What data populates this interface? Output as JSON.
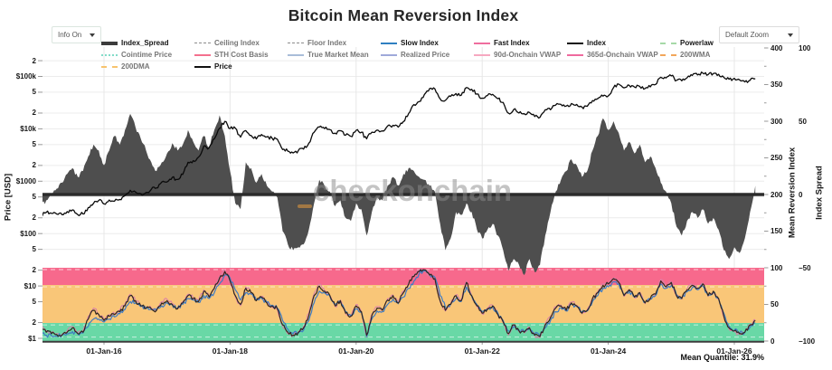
{
  "controls": {
    "info_dropdown": {
      "label": "Info On"
    },
    "zoom_dropdown": {
      "label": "Default Zoom"
    }
  },
  "watermark": {
    "text": "checkonchain"
  },
  "theme": {
    "background": "#ffffff",
    "gridline": "#ececec",
    "spread_fill": "#4e4e4e",
    "zero_line": "#2b2b2b",
    "price_line": "#0a0a0a",
    "watermark_orange": "#F5A33C",
    "band_pink": "#F7698C",
    "band_orange": "#F9C678",
    "band_green": "#69D8A6"
  },
  "legend": {
    "items": [
      {
        "label": "Index_Spread",
        "color": "#3b3b3b",
        "style": "thick",
        "active": true
      },
      {
        "label": "Ceiling Index",
        "color": "#8c8c8c",
        "style": "thin",
        "active": false
      },
      {
        "label": "Floor Index",
        "color": "#8c8c8c",
        "style": "thin",
        "active": false
      },
      {
        "label": "Slow Index",
        "color": "#2f7fc1",
        "style": "solid",
        "active": true
      },
      {
        "label": "Fast Index",
        "color": "#ef6e9e",
        "style": "solid",
        "active": true
      },
      {
        "label": "Index",
        "color": "#111111",
        "style": "solid",
        "active": true
      },
      {
        "label": "Powerlaw",
        "color": "#a6d9a7",
        "style": "dashed",
        "active": true
      },
      {
        "label": "Cointime Price",
        "color": "#82dcc9",
        "style": "dotted",
        "active": false
      },
      {
        "label": "STH Cost Basis",
        "color": "#f4708e",
        "style": "solid",
        "active": false
      },
      {
        "label": "True Market Mean",
        "color": "#a9bdd9",
        "style": "solid",
        "active": false
      },
      {
        "label": "Realized Price",
        "color": "#9fa9da",
        "style": "solid",
        "active": false
      },
      {
        "label": "90d-Onchain VWAP",
        "color": "#f6a8c0",
        "style": "solid",
        "active": false
      },
      {
        "label": "365d-Onchain VWAP",
        "color": "#ef6a9e",
        "style": "solid",
        "active": false
      },
      {
        "label": "200WMA",
        "color": "#f2a65a",
        "style": "dashed",
        "active": false
      },
      {
        "label": "200DMA",
        "color": "#f7c36e",
        "style": "dashed",
        "active": false
      },
      {
        "label": "Price",
        "color": "#111111",
        "style": "solid",
        "active": true
      }
    ]
  },
  "chart_data": {
    "type": "line",
    "title": "Bitcoin Mean Reversion Index",
    "mean_quantile_label": "Mean Quantile: 31.9%",
    "x_start_year": 2015.0,
    "x_step_years": 0.0833333,
    "x_axis": {
      "ticks": [
        {
          "year": 2016,
          "label": "01-Jan-16"
        },
        {
          "year": 2018,
          "label": "01-Jan-18"
        },
        {
          "year": 2020,
          "label": "01-Jan-20"
        },
        {
          "year": 2022,
          "label": "01-Jan-22"
        },
        {
          "year": 2024,
          "label": "01-Jan-24"
        },
        {
          "year": 2026,
          "label": "01-Jan-26"
        }
      ]
    },
    "y_left": {
      "title": "Price [USD]",
      "scale": "log",
      "range_usd": [
        1,
        400000
      ],
      "ticks": [
        {
          "v": 1,
          "l": "$1"
        },
        {
          "v": 2,
          "l": "2"
        },
        {
          "v": 5,
          "l": "5"
        },
        {
          "v": 10,
          "l": "$10"
        },
        {
          "v": 20,
          "l": "2"
        },
        {
          "v": 50,
          "l": "5"
        },
        {
          "v": 100,
          "l": "$100"
        },
        {
          "v": 200,
          "l": "2"
        },
        {
          "v": 500,
          "l": "5"
        },
        {
          "v": 1000,
          "l": "$1000"
        },
        {
          "v": 2000,
          "l": "2"
        },
        {
          "v": 5000,
          "l": "5"
        },
        {
          "v": 10000,
          "l": "$10k"
        },
        {
          "v": 20000,
          "l": "2"
        },
        {
          "v": 50000,
          "l": "5"
        },
        {
          "v": 100000,
          "l": "$100k"
        },
        {
          "v": 200000,
          "l": "2"
        }
      ]
    },
    "y_right_mri": {
      "title": "Mean Reversion Index",
      "range": [
        0,
        400
      ],
      "ticks": [
        0,
        50,
        100,
        150,
        200,
        250,
        300,
        350,
        400
      ]
    },
    "y_right_spread": {
      "title": "Index Spread",
      "range": [
        -100,
        100
      ],
      "ticks": [
        {
          "v": 100,
          "l": "100"
        },
        {
          "v": 50,
          "l": "50"
        },
        {
          "v": 0,
          "l": "0"
        },
        {
          "v": -50,
          "l": "−50"
        },
        {
          "v": -100,
          "l": "−100"
        }
      ]
    },
    "quantile_bands": [
      {
        "from": 76.5,
        "to": 100,
        "color": "#F7698C"
      },
      {
        "from": 24.7,
        "to": 76.5,
        "color": "#F9C678"
      },
      {
        "from": 0,
        "to": 24.7,
        "color": "#69D8A6"
      }
    ],
    "threshold_lines": [
      97.5,
      74,
      22,
      5.5
    ],
    "series": [
      {
        "name": "Price",
        "axis": "price_usd",
        "color": "#0a0a0a",
        "values": [
          218,
          254,
          244,
          236,
          230,
          263,
          284,
          230,
          236,
          314,
          377,
          430,
          368,
          437,
          416,
          448,
          531,
          673,
          624,
          575,
          609,
          700,
          745,
          963,
          970,
          1180,
          1080,
          1350,
          2300,
          2480,
          2875,
          4703,
          4338,
          6468,
          10233,
          13850,
          10100,
          10300,
          6926,
          9240,
          7494,
          6404,
          7780,
          7033,
          6625,
          6317,
          4017,
          3742,
          3457,
          3854,
          4105,
          5320,
          8574,
          10817,
          10085,
          9630,
          8293,
          9199,
          7569,
          7193,
          9350,
          8599,
          6438,
          8629,
          9454,
          9137,
          11323,
          11680,
          10784,
          13797,
          19698,
          28994,
          33114,
          45240,
          58800,
          57750,
          37332,
          35041,
          41490,
          47130,
          43790,
          61320,
          56950,
          46220,
          38480,
          43190,
          45540,
          37650,
          31790,
          19925,
          23300,
          20050,
          19425,
          20490,
          17165,
          16540,
          23130,
          23140,
          28470,
          29230,
          27220,
          30470,
          29230,
          25940,
          26960,
          34650,
          37710,
          42270,
          42580,
          61130,
          71330,
          60640,
          67490,
          62680,
          64620,
          58970,
          63330,
          70220,
          96450,
          93430,
          102400,
          84350,
          82550,
          94210,
          104640,
          107140,
          115760,
          108240,
          114060,
          109900,
          96100,
          88500,
          92000,
          86000,
          78500,
          84500,
          90500
        ]
      },
      {
        "name": "Index_Spread",
        "axis": "spread",
        "type": "area",
        "color": "#4e4e4e",
        "values": [
          -8,
          -4,
          0,
          4,
          8,
          14,
          18,
          12,
          16,
          26,
          34,
          30,
          20,
          30,
          40,
          34,
          44,
          55,
          46,
          38,
          30,
          22,
          16,
          22,
          28,
          35,
          30,
          34,
          44,
          36,
          30,
          40,
          32,
          44,
          54,
          40,
          16,
          -6,
          -10,
          22,
          18,
          8,
          14,
          6,
          2,
          -2,
          -25,
          -34,
          -38,
          -36,
          -34,
          -24,
          -6,
          10,
          6,
          2,
          -8,
          -4,
          -16,
          -18,
          -6,
          -10,
          -28,
          -12,
          -2,
          -4,
          6,
          12,
          6,
          14,
          18,
          16,
          12,
          10,
          6,
          2,
          -20,
          -38,
          -30,
          -12,
          -14,
          -6,
          -12,
          -24,
          -30,
          -24,
          -20,
          -28,
          -38,
          -52,
          -44,
          -48,
          -55,
          -44,
          -53,
          -48,
          -28,
          -12,
          2,
          10,
          16,
          24,
          20,
          12,
          16,
          30,
          40,
          52,
          44,
          50,
          42,
          30,
          36,
          28,
          34,
          22,
          26,
          18,
          8,
          2,
          -6,
          -22,
          -28,
          -18,
          -12,
          -16,
          -10,
          -20,
          -16,
          -24,
          -38,
          -44,
          -36,
          -40,
          -30,
          -12,
          6
        ]
      },
      {
        "name": "Index",
        "axis": "quantile",
        "color": "#2e2620",
        "values": [
          18,
          12,
          10,
          9,
          8,
          12,
          18,
          10,
          12,
          30,
          42,
          36,
          28,
          34,
          36,
          40,
          48,
          62,
          55,
          48,
          45,
          44,
          42,
          52,
          55,
          50,
          44,
          52,
          62,
          58,
          54,
          68,
          60,
          72,
          86,
          95,
          82,
          62,
          50,
          72,
          66,
          55,
          60,
          52,
          48,
          44,
          22,
          12,
          8,
          12,
          18,
          35,
          62,
          75,
          68,
          62,
          48,
          55,
          38,
          34,
          48,
          40,
          8,
          35,
          45,
          42,
          56,
          62,
          52,
          66,
          78,
          88,
          95,
          97,
          90,
          85,
          55,
          42,
          50,
          62,
          55,
          80,
          62,
          48,
          38,
          44,
          48,
          36,
          26,
          10,
          22,
          14,
          12,
          18,
          8,
          6,
          22,
          32,
          45,
          48,
          42,
          52,
          48,
          38,
          42,
          58,
          66,
          76,
          78,
          85,
          80,
          62,
          70,
          60,
          66,
          52,
          58,
          64,
          82,
          74,
          80,
          62,
          58,
          70,
          76,
          72,
          78,
          62,
          68,
          58,
          34,
          18,
          14,
          10,
          12,
          22,
          28
        ]
      },
      {
        "name": "Slow Index",
        "axis": "quantile",
        "color": "#3f7cc4",
        "values": [
          10,
          8,
          7,
          7,
          8,
          10,
          13,
          10,
          11,
          20,
          30,
          30,
          26,
          30,
          33,
          37,
          43,
          54,
          52,
          47,
          44,
          43,
          42,
          48,
          52,
          49,
          45,
          50,
          58,
          56,
          53,
          62,
          58,
          66,
          78,
          90,
          86,
          70,
          56,
          66,
          64,
          56,
          58,
          53,
          49,
          45,
          28,
          16,
          10,
          11,
          15,
          28,
          52,
          68,
          66,
          61,
          50,
          53,
          40,
          35,
          44,
          40,
          6,
          30,
          41,
          40,
          50,
          57,
          51,
          60,
          72,
          82,
          92,
          96,
          91,
          87,
          62,
          46,
          50,
          58,
          54,
          74,
          61,
          50,
          40,
          43,
          46,
          38,
          28,
          14,
          20,
          15,
          13,
          17,
          10,
          7,
          18,
          28,
          40,
          45,
          41,
          50,
          47,
          40,
          41,
          54,
          62,
          72,
          74,
          81,
          78,
          63,
          68,
          60,
          64,
          53,
          57,
          62,
          78,
          72,
          76,
          63,
          59,
          67,
          73,
          70,
          75,
          62,
          66,
          58,
          38,
          20,
          15,
          11,
          12,
          19,
          25
        ]
      },
      {
        "name": "Fast Index",
        "axis": "quantile",
        "color": "#da7fa8",
        "values": [
          22,
          14,
          11,
          10,
          9,
          14,
          20,
          11,
          14,
          34,
          45,
          37,
          30,
          36,
          38,
          42,
          51,
          64,
          56,
          49,
          46,
          45,
          43,
          54,
          57,
          51,
          45,
          54,
          64,
          59,
          55,
          70,
          61,
          74,
          88,
          97,
          80,
          60,
          48,
          74,
          67,
          55,
          61,
          52,
          47,
          43,
          20,
          10,
          7,
          13,
          20,
          38,
          65,
          77,
          69,
          62,
          47,
          56,
          37,
          33,
          50,
          40,
          5,
          37,
          47,
          43,
          58,
          63,
          52,
          68,
          80,
          90,
          97,
          98,
          90,
          84,
          53,
          41,
          51,
          63,
          55,
          82,
          62,
          47,
          37,
          45,
          49,
          35,
          25,
          8,
          23,
          13,
          11,
          19,
          7,
          5,
          24,
          34,
          47,
          49,
          43,
          53,
          49,
          37,
          43,
          59,
          67,
          78,
          79,
          86,
          80,
          61,
          70,
          59,
          67,
          51,
          58,
          65,
          84,
          74,
          81,
          61,
          57,
          71,
          77,
          72,
          79,
          61,
          68,
          57,
          32,
          16,
          13,
          9,
          12,
          23,
          29
        ]
      }
    ]
  }
}
